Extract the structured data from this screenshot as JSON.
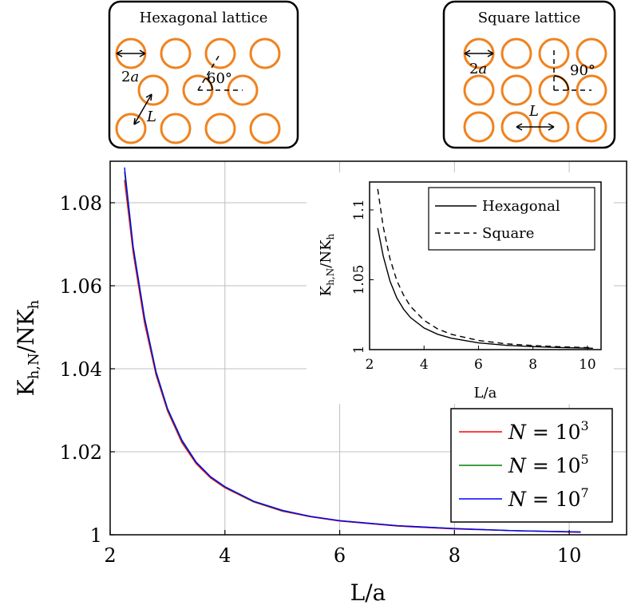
{
  "insets": [
    {
      "title": "Hexagonal lattice",
      "diameter_label": "2",
      "diameter_var": "a",
      "angle_label": "60°",
      "spacing_label": "L"
    },
    {
      "title": "Square lattice",
      "diameter_label": "2",
      "diameter_var": "a",
      "angle_label": "90°",
      "spacing_label": "L"
    }
  ],
  "colors": {
    "circle": "#f0821e",
    "grid": "#bfbfbf",
    "N_1e3": "#ff0000",
    "N_1e5": "#008000",
    "N_1e7": "#0000ff"
  },
  "chart_data": [
    {
      "type": "line",
      "xlabel": "L/a",
      "ylabel_main": "K",
      "ylabel_sub1": "h,N",
      "ylabel_mid": "/NK",
      "ylabel_sub2": "h",
      "xlim": [
        2,
        11
      ],
      "ylim": [
        1,
        1.09
      ],
      "x_ticks": [
        "2",
        "4",
        "6",
        "8",
        "10"
      ],
      "y_ticks": [
        "1",
        "1.02",
        "1.04",
        "1.06",
        "1.08"
      ],
      "grid": true,
      "legend_position": "bottom-right",
      "x": [
        2.25,
        2.4,
        2.6,
        2.8,
        3.0,
        3.25,
        3.5,
        3.75,
        4.0,
        4.5,
        5.0,
        5.5,
        6.0,
        7.0,
        8.0,
        9.0,
        10.2
      ],
      "series": [
        {
          "name_var": "N",
          "name_eq": " = 10",
          "name_exp": "3",
          "color_key": "N_1e3",
          "values": [
            1.0855,
            1.068,
            1.051,
            1.0385,
            1.0298,
            1.0222,
            1.0171,
            1.0137,
            1.0113,
            1.0079,
            1.0057,
            1.0043,
            1.0033,
            1.0021,
            1.0014,
            1.001,
            1.0006
          ]
        },
        {
          "name_var": "N",
          "name_eq": " = 10",
          "name_exp": "5",
          "color_key": "N_1e5",
          "values": [
            1.0875,
            1.069,
            1.052,
            1.039,
            1.0302,
            1.0226,
            1.0174,
            1.0139,
            1.0115,
            1.008,
            1.0058,
            1.0044,
            1.0034,
            1.0022,
            1.0015,
            1.001,
            1.0007
          ]
        },
        {
          "name_var": "N",
          "name_eq": " = 10",
          "name_exp": "7",
          "color_key": "N_1e7",
          "values": [
            1.0885,
            1.0695,
            1.0523,
            1.0393,
            1.0304,
            1.0228,
            1.0175,
            1.014,
            1.0116,
            1.0081,
            1.0059,
            1.0044,
            1.0034,
            1.0022,
            1.0015,
            1.001,
            1.0007
          ]
        }
      ]
    },
    {
      "type": "line",
      "xlabel": "L/a",
      "ylabel_main": "K",
      "ylabel_sub1": "h,N",
      "ylabel_mid": "/NK",
      "ylabel_sub2": "h",
      "xlim": [
        2,
        10.5
      ],
      "ylim": [
        1,
        1.12
      ],
      "x_ticks": [
        "2",
        "4",
        "6",
        "8",
        "10"
      ],
      "y_ticks": [
        "1",
        "1.05",
        "1.1"
      ],
      "grid": false,
      "legend_position": "top-right",
      "x": [
        2.3,
        2.5,
        2.75,
        3.0,
        3.25,
        3.5,
        4.0,
        4.5,
        5.0,
        6.0,
        7.0,
        8.0,
        9.0,
        10.2
      ],
      "series": [
        {
          "name": "Hexagonal",
          "style": "solid",
          "values": [
            1.087,
            1.067,
            1.049,
            1.037,
            1.029,
            1.023,
            1.0155,
            1.011,
            1.0082,
            1.0048,
            1.0031,
            1.0021,
            1.0015,
            1.001
          ]
        },
        {
          "name": "Square",
          "style": "dashed",
          "values": [
            1.115,
            1.088,
            1.065,
            1.0495,
            1.039,
            1.031,
            1.021,
            1.0148,
            1.011,
            1.0065,
            1.0042,
            1.0029,
            1.002,
            1.0013
          ]
        }
      ]
    }
  ]
}
